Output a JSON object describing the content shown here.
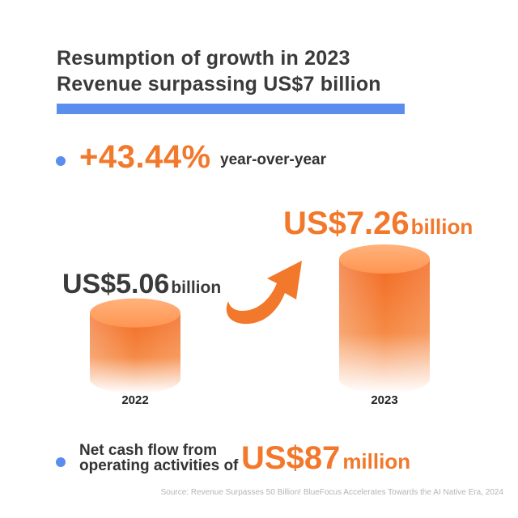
{
  "title": {
    "line1": "Resumption of growth in 2023",
    "line2": "Revenue surpassing US$7 billion"
  },
  "growth": {
    "value": "+43.44%",
    "suffix": "year-over-year"
  },
  "chart_data": {
    "type": "bar",
    "categories": [
      "2022",
      "2023"
    ],
    "values": [
      5.06,
      7.26
    ],
    "unit": "US$ billion",
    "data_labels": [
      {
        "num": "US$5.06",
        "unit": "billion"
      },
      {
        "num": "US$7.26",
        "unit": "billion"
      }
    ],
    "ylim": [
      0,
      7.26
    ],
    "grid": false,
    "legend": "none"
  },
  "cash_flow": {
    "label_line1": "Net cash flow from",
    "label_line2": "operating activities of",
    "value": "US$87",
    "unit": "million"
  },
  "source": "Source: Revenue Surpasses 50 Billion! BlueFocus Accelerates Towards the AI Native Era, 2024",
  "colors": {
    "accent": "#f2782b",
    "accent_light": "#f9b27e",
    "bar_top": "#ff9b57",
    "blue": "#5b8def",
    "text_dark": "#333333"
  }
}
